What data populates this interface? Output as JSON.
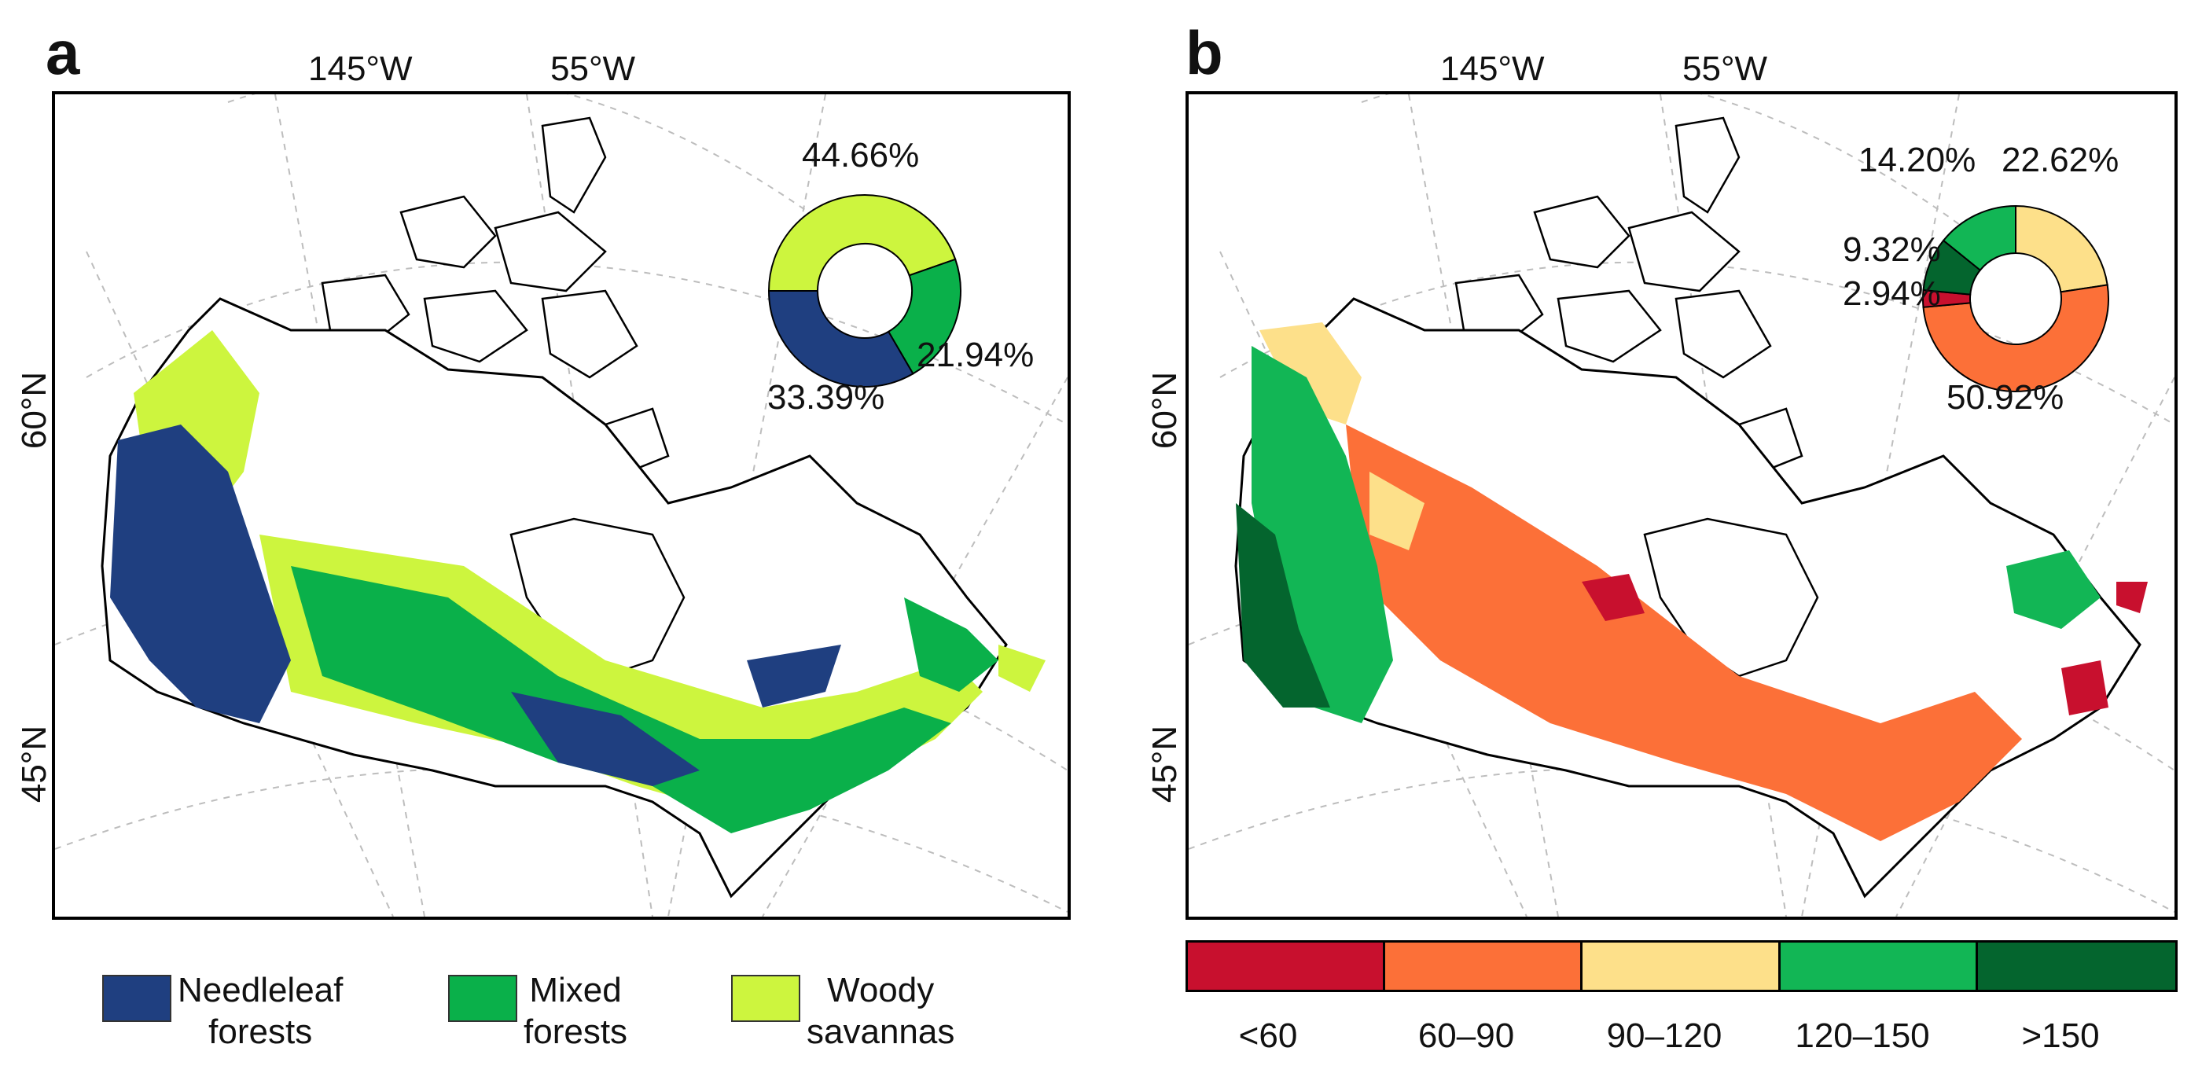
{
  "panel_a": {
    "letter": "a",
    "lon_labels": [
      "145°W",
      "55°W"
    ],
    "lat_labels": [
      "60°N",
      "45°N"
    ],
    "donut": {
      "percentages": [
        "44.66%",
        "21.94%",
        "33.39%"
      ],
      "values": [
        44.66,
        21.94,
        33.39
      ],
      "colors": [
        "#cdf53e",
        "#0ab04a",
        "#1f3f80"
      ]
    },
    "legend": [
      {
        "line1": "Needleleaf",
        "line2": "forests",
        "color": "#1f3f80"
      },
      {
        "line1": "Mixed",
        "line2": "forests",
        "color": "#0ab04a"
      },
      {
        "line1": "Woody",
        "line2": "savannas",
        "color": "#cdf53e"
      }
    ]
  },
  "panel_b": {
    "letter": "b",
    "lon_labels": [
      "145°W",
      "55°W"
    ],
    "lat_labels": [
      "60°N",
      "45°N"
    ],
    "donut": {
      "percentages": [
        "22.62%",
        "50.92%",
        "2.94%",
        "9.32%",
        "14.20%"
      ],
      "values": [
        22.62,
        50.92,
        2.94,
        9.32,
        14.2
      ],
      "colors": [
        "#fde08a",
        "#fc7038",
        "#c8102e",
        "#04652e",
        "#12b655"
      ]
    },
    "colorbar": [
      {
        "label": "<60",
        "color": "#c8102e"
      },
      {
        "label": "60–90",
        "color": "#fc7038"
      },
      {
        "label": "90–120",
        "color": "#fde08a"
      },
      {
        "label": "120–150",
        "color": "#12b655"
      },
      {
        "label": ">150",
        "color": ">150"
      }
    ]
  }
}
